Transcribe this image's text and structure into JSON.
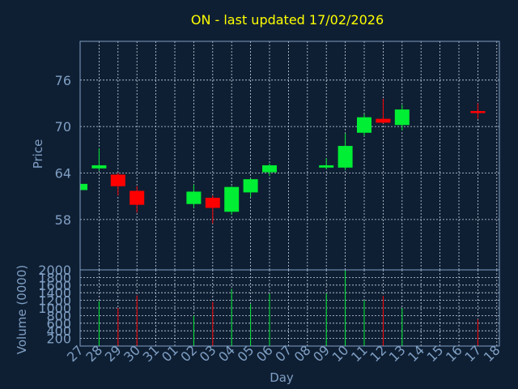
{
  "colors": {
    "background": "#0f1f33",
    "title": "#ffff00",
    "axis_text": "#7f9fc4",
    "grid": "#c8d4e4",
    "up": "#00ee33",
    "down": "#ff0000"
  },
  "chart_data": [
    {
      "type": "candlestick",
      "title": "ON - last updated 17/02/2026",
      "ylabel": "Price",
      "ylim": [
        51.5,
        81
      ],
      "y_ticks": [
        "58",
        "64",
        "70",
        "76"
      ],
      "x": [
        "27",
        "28",
        "29",
        "30",
        "31",
        "01",
        "02",
        "03",
        "04",
        "05",
        "06",
        "07",
        "08",
        "09",
        "10",
        "11",
        "12",
        "13",
        "14",
        "15",
        "16",
        "17",
        "18"
      ],
      "candles": [
        {
          "day": "27",
          "open": 61.8,
          "high": 62.6,
          "low": 61.8,
          "close": 62.6
        },
        {
          "day": "28",
          "open": 64.6,
          "high": 67.2,
          "low": 64.3,
          "close": 65.0
        },
        {
          "day": "29",
          "open": 63.8,
          "high": 64.0,
          "low": 61.1,
          "close": 62.3
        },
        {
          "day": "30",
          "open": 61.7,
          "high": 62.3,
          "low": 58.9,
          "close": 59.9
        },
        {
          "day": "02",
          "open": 60.0,
          "high": 62.5,
          "low": 59.5,
          "close": 61.6
        },
        {
          "day": "03",
          "open": 60.8,
          "high": 61.1,
          "low": 57.5,
          "close": 59.5
        },
        {
          "day": "04",
          "open": 59.0,
          "high": 62.3,
          "low": 58.6,
          "close": 62.2
        },
        {
          "day": "05",
          "open": 61.5,
          "high": 63.3,
          "low": 60.9,
          "close": 63.2
        },
        {
          "day": "06",
          "open": 64.1,
          "high": 65.2,
          "low": 63.6,
          "close": 65.0
        },
        {
          "day": "09",
          "open": 64.7,
          "high": 65.9,
          "low": 64.5,
          "close": 65.0
        },
        {
          "day": "10",
          "open": 64.7,
          "high": 69.1,
          "low": 64.4,
          "close": 67.5
        },
        {
          "day": "11",
          "open": 69.2,
          "high": 71.6,
          "low": 68.8,
          "close": 71.2
        },
        {
          "day": "12",
          "open": 71.0,
          "high": 73.6,
          "low": 70.4,
          "close": 70.5
        },
        {
          "day": "13",
          "open": 70.2,
          "high": 72.8,
          "low": 69.5,
          "close": 72.2
        },
        {
          "day": "17",
          "open": 72.0,
          "high": 73.0,
          "low": 71.0,
          "close": 71.8
        }
      ]
    },
    {
      "type": "bar",
      "xlabel": "Day",
      "ylabel": "Volume (0000)",
      "ylim": [
        0,
        2000
      ],
      "y_ticks": [
        "200",
        "400",
        "600",
        "800",
        "1000",
        "1200",
        "1400",
        "1600",
        "1800",
        "2000"
      ],
      "bars": [
        {
          "day": "28",
          "value": 1180,
          "direction": "up"
        },
        {
          "day": "29",
          "value": 1000,
          "direction": "down"
        },
        {
          "day": "30",
          "value": 1330,
          "direction": "down"
        },
        {
          "day": "02",
          "value": 800,
          "direction": "up"
        },
        {
          "day": "03",
          "value": 1160,
          "direction": "down"
        },
        {
          "day": "04",
          "value": 1500,
          "direction": "up"
        },
        {
          "day": "05",
          "value": 1100,
          "direction": "up"
        },
        {
          "day": "06",
          "value": 1370,
          "direction": "up"
        },
        {
          "day": "09",
          "value": 1380,
          "direction": "up"
        },
        {
          "day": "10",
          "value": 1980,
          "direction": "up"
        },
        {
          "day": "11",
          "value": 1200,
          "direction": "up"
        },
        {
          "day": "12",
          "value": 1320,
          "direction": "down"
        },
        {
          "day": "13",
          "value": 1000,
          "direction": "up"
        },
        {
          "day": "17",
          "value": 700,
          "direction": "down"
        }
      ]
    }
  ]
}
